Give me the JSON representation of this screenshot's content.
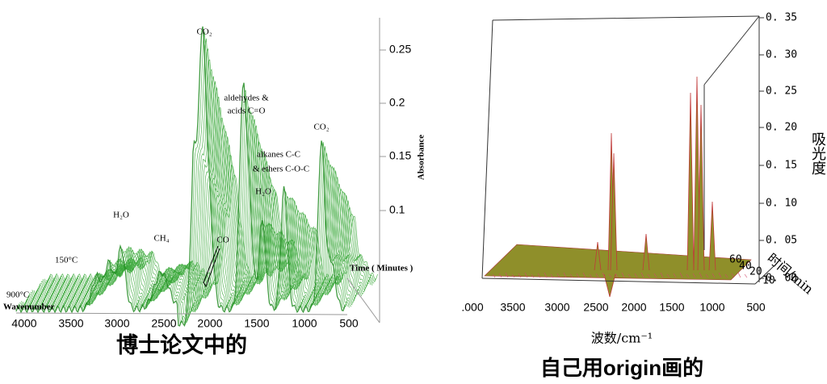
{
  "left": {
    "x_ticks": [
      "4000",
      "3500",
      "3000",
      "2500",
      "2000",
      "1500",
      "1000",
      "500"
    ],
    "x_label": "Wavenumber",
    "temp_high": "900°C",
    "temp_low": "150°C",
    "y_ticks": [
      "0.25",
      "0.2",
      "0.15",
      "0.1"
    ],
    "y_label": "Absorbance",
    "time_label": "Time ( Minutes )",
    "annotations": [
      "CO₂",
      "aldehydes &",
      "acids C=O",
      "CO₂",
      "alkanes C-C",
      "& ethers C-O-C",
      "H₂O",
      "H₂O",
      "CH₄",
      "CO"
    ],
    "caption": "博士论文中的"
  },
  "right": {
    "x_ticks": [
      ".000",
      "3500",
      "3000",
      "2500",
      "2000",
      "1500",
      "1000",
      "500"
    ],
    "x_label": "波数/cm⁻¹",
    "z_ticks": [
      "0. 35",
      "0. 30",
      "0. 25",
      "0. 20",
      "0. 15",
      "0. 10",
      "0. 05",
      "0. 00"
    ],
    "z_label": "吸光度",
    "time_ticks": [
      "60",
      "40",
      "20",
      "10"
    ],
    "time_label": "时间/min",
    "caption": "自己用origin画的"
  }
}
